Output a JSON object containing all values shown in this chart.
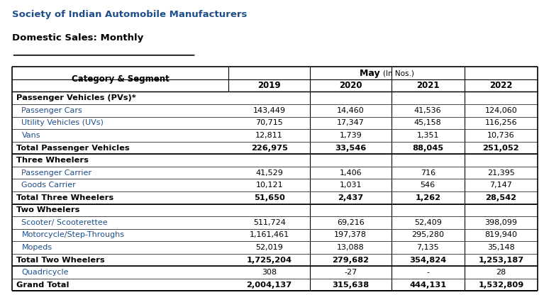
{
  "title1": "Society of Indian Automobile Manufacturers",
  "title2": "Domestic Sales: Monthly",
  "header_main": "May",
  "header_sub": "(In Nos.)",
  "years": [
    "2019",
    "2020",
    "2021",
    "2022"
  ],
  "col_header": "Category & Segment",
  "rows": [
    {
      "label": "Passenger Vehicles (PVs)*",
      "type": "section",
      "values": [
        "",
        "",
        "",
        ""
      ]
    },
    {
      "label": "Passenger Cars",
      "type": "data",
      "values": [
        "143,449",
        "14,460",
        "41,536",
        "124,060"
      ]
    },
    {
      "label": "Utility Vehicles (UVs)",
      "type": "data",
      "values": [
        "70,715",
        "17,347",
        "45,158",
        "116,256"
      ]
    },
    {
      "label": "Vans",
      "type": "data",
      "values": [
        "12,811",
        "1,739",
        "1,351",
        "10,736"
      ]
    },
    {
      "label": "Total Passenger Vehicles",
      "type": "total",
      "values": [
        "226,975",
        "33,546",
        "88,045",
        "251,052"
      ]
    },
    {
      "label": "Three Wheelers",
      "type": "section",
      "values": [
        "",
        "",
        "",
        ""
      ]
    },
    {
      "label": "Passenger Carrier",
      "type": "data",
      "values": [
        "41,529",
        "1,406",
        "716",
        "21,395"
      ]
    },
    {
      "label": "Goods Carrier",
      "type": "data",
      "values": [
        "10,121",
        "1,031",
        "546",
        "7,147"
      ]
    },
    {
      "label": "Total Three Wheelers",
      "type": "total",
      "values": [
        "51,650",
        "2,437",
        "1,262",
        "28,542"
      ]
    },
    {
      "label": "Two Wheelers",
      "type": "section",
      "values": [
        "",
        "",
        "",
        ""
      ]
    },
    {
      "label": "Scooter/ Scooterettee",
      "type": "data",
      "values": [
        "511,724",
        "69,216",
        "52,409",
        "398,099"
      ]
    },
    {
      "label": "Motorcycle/Step-Throughs",
      "type": "data",
      "values": [
        "1,161,461",
        "197,378",
        "295,280",
        "819,940"
      ]
    },
    {
      "label": "Mopeds",
      "type": "data",
      "values": [
        "52,019",
        "13,088",
        "7,135",
        "35,148"
      ]
    },
    {
      "label": "Total Two Wheelers",
      "type": "total",
      "values": [
        "1,725,204",
        "279,682",
        "354,824",
        "1,253,187"
      ]
    },
    {
      "label": "Quadricycle",
      "type": "data",
      "values": [
        "308",
        "-27",
        "-",
        "28"
      ]
    },
    {
      "label": "Grand Total",
      "type": "grand_total",
      "values": [
        "2,004,137",
        "315,638",
        "444,131",
        "1,532,809"
      ]
    }
  ],
  "title1_color": "#1F4E8C",
  "title2_color": "#000000",
  "header_color": "#000000",
  "section_color": "#000000",
  "data_color": "#1F4E8C",
  "total_color": "#000000",
  "grand_total_color": "#000000",
  "table_border_color": "#000000",
  "bg_color": "#FFFFFF",
  "fig_width": 7.67,
  "fig_height": 4.16
}
